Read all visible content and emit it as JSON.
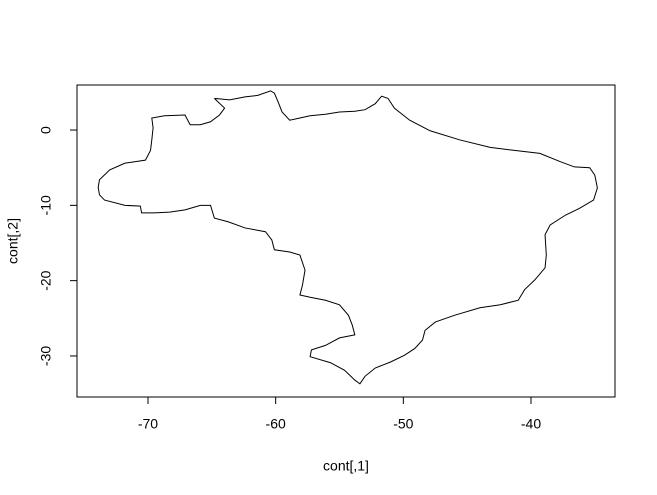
{
  "chart_data": {
    "type": "line",
    "xlabel": "cont[,1]",
    "ylabel": "cont[,2]",
    "color": "#000000",
    "xlim": [
      -75.56,
      -33.42
    ],
    "ylim": [
      -35.45,
      5.98
    ],
    "xticks": [
      -70,
      -60,
      -50,
      -40
    ],
    "yticks": [
      -30,
      -20,
      -10,
      0
    ],
    "grid": false,
    "x": [
      -64.8,
      -63.6,
      -62.4,
      -61.4,
      -60.4,
      -60.1,
      -59.8,
      -59.5,
      -58.9,
      -58.1,
      -57.3,
      -56.1,
      -55.0,
      -53.8,
      -53.0,
      -52.2,
      -51.7,
      -51.2,
      -50.7,
      -49.5,
      -47.9,
      -45.6,
      -43.2,
      -41.3,
      -39.3,
      -37.7,
      -36.6,
      -35.4,
      -35.0,
      -34.8,
      -35.1,
      -36.2,
      -37.3,
      -38.5,
      -38.9,
      -38.8,
      -38.9,
      -39.7,
      -40.5,
      -41.0,
      -42.4,
      -44.0,
      -46.0,
      -47.5,
      -48.3,
      -48.5,
      -49.1,
      -49.9,
      -51.0,
      -52.2,
      -53.0,
      -53.4,
      -53.8,
      -54.6,
      -55.7,
      -57.3,
      -57.2,
      -56.1,
      -55.0,
      -53.8,
      -54.0,
      -54.3,
      -55.0,
      -56.1,
      -57.3,
      -58.1,
      -57.9,
      -57.7,
      -58.1,
      -58.9,
      -60.1,
      -60.3,
      -60.8,
      -62.4,
      -63.7,
      -64.8,
      -65.1,
      -65.9,
      -67.1,
      -68.3,
      -69.5,
      -70.5,
      -70.6,
      -71.8,
      -73.4,
      -73.8,
      -73.9,
      -73.8,
      -73.0,
      -71.8,
      -70.2,
      -69.8,
      -69.7,
      -69.6,
      -69.7,
      -68.7,
      -67.1,
      -66.7,
      -65.9,
      -65.1,
      -64.4,
      -64.0,
      -64.8
    ],
    "y": [
      4.2,
      4.0,
      4.4,
      4.6,
      5.2,
      4.9,
      3.7,
      2.4,
      1.3,
      1.6,
      1.9,
      2.1,
      2.4,
      2.5,
      2.7,
      3.5,
      4.5,
      4.2,
      2.9,
      1.3,
      -0.1,
      -1.3,
      -2.3,
      -2.7,
      -3.1,
      -4.2,
      -4.9,
      -5.0,
      -6.0,
      -7.7,
      -9.3,
      -10.4,
      -11.3,
      -12.6,
      -13.9,
      -16.6,
      -18.3,
      -19.9,
      -21.2,
      -22.6,
      -23.2,
      -23.6,
      -24.6,
      -25.5,
      -26.6,
      -27.9,
      -29.0,
      -29.9,
      -30.8,
      -31.6,
      -32.7,
      -33.7,
      -33.2,
      -31.9,
      -30.9,
      -30.1,
      -29.2,
      -28.6,
      -27.6,
      -27.2,
      -25.9,
      -24.6,
      -23.2,
      -22.6,
      -22.2,
      -21.9,
      -20.6,
      -18.6,
      -16.6,
      -16.2,
      -15.9,
      -14.6,
      -13.5,
      -13.0,
      -12.2,
      -11.7,
      -10.0,
      -10.0,
      -10.6,
      -10.9,
      -11.0,
      -11.0,
      -10.1,
      -10.0,
      -9.3,
      -8.6,
      -7.6,
      -6.6,
      -5.3,
      -4.4,
      -4.0,
      -2.7,
      -1.3,
      0.3,
      1.6,
      1.9,
      2.0,
      0.7,
      0.7,
      1.1,
      2.0,
      2.9,
      4.2
    ]
  }
}
